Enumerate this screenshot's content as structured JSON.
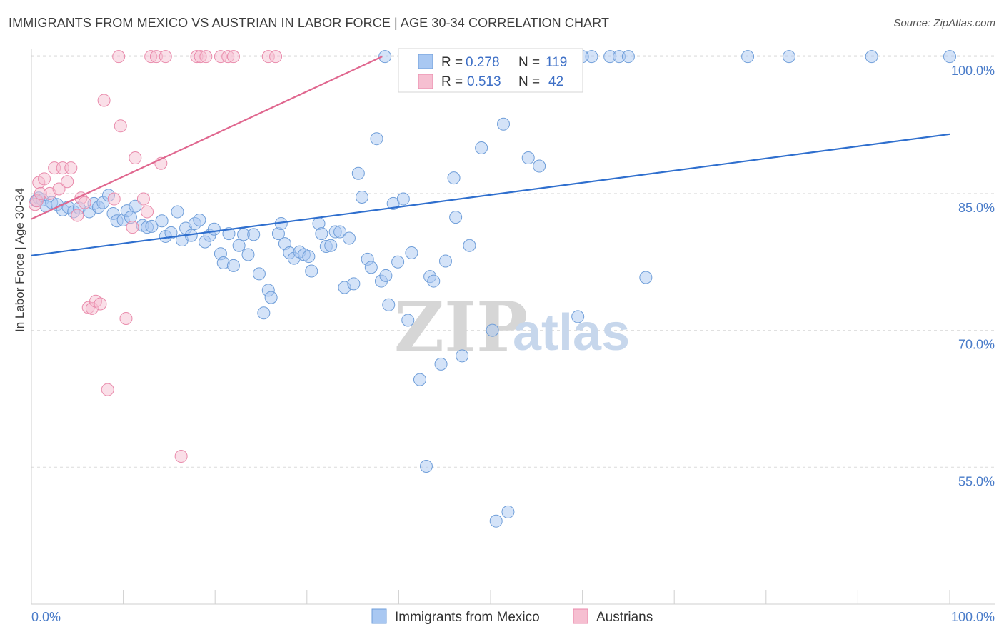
{
  "title": "IMMIGRANTS FROM MEXICO VS AUSTRIAN IN LABOR FORCE | AGE 30-34 CORRELATION CHART",
  "source": "Source: ZipAtlas.com",
  "watermark": {
    "a": "ZIP",
    "b": "atlas"
  },
  "colors": {
    "blue_fill": "#a9c8f2",
    "blue_stroke": "#6f9ed9",
    "blue_line": "#2f6fce",
    "pink_fill": "#f6bfd1",
    "pink_stroke": "#e98aab",
    "pink_line": "#e0678f",
    "grid": "#dcdcdc",
    "axis_text": "#4a7cc9"
  },
  "chart_data": {
    "type": "scatter",
    "title": "IMMIGRANTS FROM MEXICO VS AUSTRIAN IN LABOR FORCE | AGE 30-34 CORRELATION CHART",
    "xlabel": "",
    "ylabel": "In Labor Force | Age 30-34",
    "xlim": [
      0,
      100
    ],
    "ylim": [
      40,
      101.5
    ],
    "x_tick_labels": [
      {
        "value": 0,
        "label": "0.0%"
      },
      {
        "value": 100,
        "label": "100.0%"
      }
    ],
    "y_ticks": [
      {
        "value": 100,
        "label": "100.0%"
      },
      {
        "value": 85,
        "label": "85.0%"
      },
      {
        "value": 70,
        "label": "70.0%"
      },
      {
        "value": 55,
        "label": "55.0%"
      }
    ],
    "x_minor_ticks": [
      10,
      20,
      30,
      40,
      50,
      60,
      70,
      80,
      90,
      100
    ],
    "legend": {
      "entries": [
        {
          "r_label": "R =",
          "r": "0.278",
          "n_label": "N =",
          "n": "119"
        },
        {
          "r_label": "R =",
          "r": "0.513",
          "n_label": "N =",
          "n": "42"
        }
      ]
    },
    "series": [
      {
        "name": "Immigrants from Mexico",
        "r": 0.278,
        "n": 119,
        "trend": {
          "x": [
            0,
            100
          ],
          "y": [
            78.2,
            91.5
          ]
        },
        "points": [
          [
            0.5,
            84.2
          ],
          [
            0.8,
            84.5
          ],
          [
            1.2,
            84.3
          ],
          [
            1.6,
            83.6
          ],
          [
            2.2,
            84.0
          ],
          [
            2.8,
            83.8
          ],
          [
            3.4,
            83.2
          ],
          [
            4.0,
            83.5
          ],
          [
            4.6,
            83.0
          ],
          [
            5.2,
            83.4
          ],
          [
            6.3,
            83.0
          ],
          [
            6.8,
            83.9
          ],
          [
            7.3,
            83.5
          ],
          [
            7.8,
            84.0
          ],
          [
            8.4,
            84.8
          ],
          [
            8.9,
            82.8
          ],
          [
            9.3,
            82.0
          ],
          [
            10.0,
            82.1
          ],
          [
            10.4,
            83.1
          ],
          [
            10.8,
            82.4
          ],
          [
            11.3,
            83.6
          ],
          [
            12.1,
            81.5
          ],
          [
            12.6,
            81.3
          ],
          [
            13.1,
            81.4
          ],
          [
            14.2,
            82.0
          ],
          [
            14.6,
            80.3
          ],
          [
            15.2,
            80.7
          ],
          [
            15.9,
            83.0
          ],
          [
            16.4,
            79.9
          ],
          [
            16.8,
            81.2
          ],
          [
            17.4,
            80.4
          ],
          [
            17.8,
            81.7
          ],
          [
            18.3,
            82.1
          ],
          [
            18.9,
            79.7
          ],
          [
            19.4,
            80.4
          ],
          [
            19.9,
            81.1
          ],
          [
            20.6,
            78.4
          ],
          [
            20.9,
            77.4
          ],
          [
            21.5,
            80.6
          ],
          [
            22.0,
            77.1
          ],
          [
            22.6,
            79.3
          ],
          [
            23.1,
            80.5
          ],
          [
            23.6,
            78.3
          ],
          [
            24.2,
            80.5
          ],
          [
            24.8,
            76.2
          ],
          [
            25.3,
            71.9
          ],
          [
            25.8,
            74.4
          ],
          [
            26.1,
            73.6
          ],
          [
            26.9,
            80.6
          ],
          [
            27.2,
            81.7
          ],
          [
            27.6,
            79.5
          ],
          [
            28.1,
            78.5
          ],
          [
            28.6,
            77.9
          ],
          [
            29.2,
            78.6
          ],
          [
            29.7,
            78.3
          ],
          [
            30.2,
            78.1
          ],
          [
            30.5,
            76.5
          ],
          [
            31.3,
            81.7
          ],
          [
            31.6,
            80.6
          ],
          [
            32.1,
            79.2
          ],
          [
            32.6,
            79.3
          ],
          [
            33.1,
            80.8
          ],
          [
            33.6,
            80.8
          ],
          [
            34.1,
            74.7
          ],
          [
            34.6,
            80.1
          ],
          [
            35.1,
            75.1
          ],
          [
            35.6,
            87.2
          ],
          [
            36.0,
            84.6
          ],
          [
            36.6,
            77.8
          ],
          [
            37.0,
            76.9
          ],
          [
            37.6,
            91.0
          ],
          [
            38.1,
            75.4
          ],
          [
            38.6,
            76.0
          ],
          [
            38.9,
            72.8
          ],
          [
            39.4,
            83.9
          ],
          [
            39.9,
            77.5
          ],
          [
            40.5,
            84.4
          ],
          [
            41.0,
            71.1
          ],
          [
            41.4,
            78.5
          ],
          [
            42.3,
            64.6
          ],
          [
            43.0,
            55.1
          ],
          [
            43.4,
            75.9
          ],
          [
            43.8,
            75.4
          ],
          [
            44.6,
            66.3
          ],
          [
            45.1,
            77.6
          ],
          [
            46.0,
            86.7
          ],
          [
            46.2,
            82.4
          ],
          [
            46.9,
            67.2
          ],
          [
            47.7,
            79.3
          ],
          [
            49.0,
            90.0
          ],
          [
            50.2,
            70.0
          ],
          [
            50.6,
            49.1
          ],
          [
            51.4,
            92.6
          ],
          [
            51.9,
            50.1
          ],
          [
            54.1,
            88.9
          ],
          [
            55.3,
            88.0
          ],
          [
            59.5,
            71.5
          ],
          [
            66.9,
            75.8
          ],
          [
            38.5,
            100.0
          ],
          [
            42.0,
            100.0
          ],
          [
            47.0,
            100.0
          ],
          [
            48.5,
            100.0
          ],
          [
            52.0,
            100.0
          ],
          [
            54.0,
            100.0
          ],
          [
            56.5,
            100.0
          ],
          [
            59.0,
            100.0
          ],
          [
            61.0,
            100.0
          ],
          [
            63.0,
            100.0
          ],
          [
            64.0,
            100.0
          ],
          [
            78.0,
            100.0
          ],
          [
            82.5,
            100.0
          ],
          [
            91.5,
            100.0
          ],
          [
            100.0,
            100.0
          ],
          [
            57.5,
            100.0
          ],
          [
            60.0,
            100.0
          ],
          [
            44.5,
            100.0
          ],
          [
            46.0,
            100.0
          ],
          [
            53.0,
            100.0
          ],
          [
            65.0,
            100.0
          ]
        ]
      },
      {
        "name": "Austrians",
        "r": 0.513,
        "n": 42,
        "trend": {
          "x": [
            0,
            38.2
          ],
          "y": [
            82.2,
            100.0
          ]
        },
        "points": [
          [
            0.4,
            83.8
          ],
          [
            0.6,
            84.2
          ],
          [
            0.8,
            86.2
          ],
          [
            1.0,
            85.0
          ],
          [
            1.4,
            86.6
          ],
          [
            2.0,
            85.0
          ],
          [
            2.5,
            87.8
          ],
          [
            3.0,
            85.5
          ],
          [
            3.4,
            87.8
          ],
          [
            3.9,
            86.3
          ],
          [
            4.3,
            87.8
          ],
          [
            5.0,
            82.6
          ],
          [
            5.4,
            84.5
          ],
          [
            5.8,
            84.0
          ],
          [
            6.2,
            72.5
          ],
          [
            6.6,
            72.4
          ],
          [
            7.0,
            73.2
          ],
          [
            7.5,
            72.9
          ],
          [
            7.9,
            95.2
          ],
          [
            8.3,
            63.5
          ],
          [
            9.0,
            84.4
          ],
          [
            9.5,
            100.0
          ],
          [
            9.7,
            92.4
          ],
          [
            10.3,
            71.3
          ],
          [
            11.0,
            81.3
          ],
          [
            11.3,
            88.9
          ],
          [
            12.2,
            84.4
          ],
          [
            12.6,
            83.0
          ],
          [
            13.0,
            100.0
          ],
          [
            13.6,
            100.0
          ],
          [
            14.1,
            88.3
          ],
          [
            14.6,
            100.0
          ],
          [
            16.3,
            56.2
          ],
          [
            18.0,
            100.0
          ],
          [
            18.4,
            100.0
          ],
          [
            19.0,
            100.0
          ],
          [
            20.6,
            100.0
          ],
          [
            21.4,
            100.0
          ],
          [
            22.0,
            100.0
          ],
          [
            25.8,
            100.0
          ],
          [
            26.6,
            100.0
          ],
          [
            41.2,
            100.0
          ]
        ]
      }
    ]
  },
  "bottom_legend": [
    "Immigrants from Mexico",
    "Austrians"
  ]
}
